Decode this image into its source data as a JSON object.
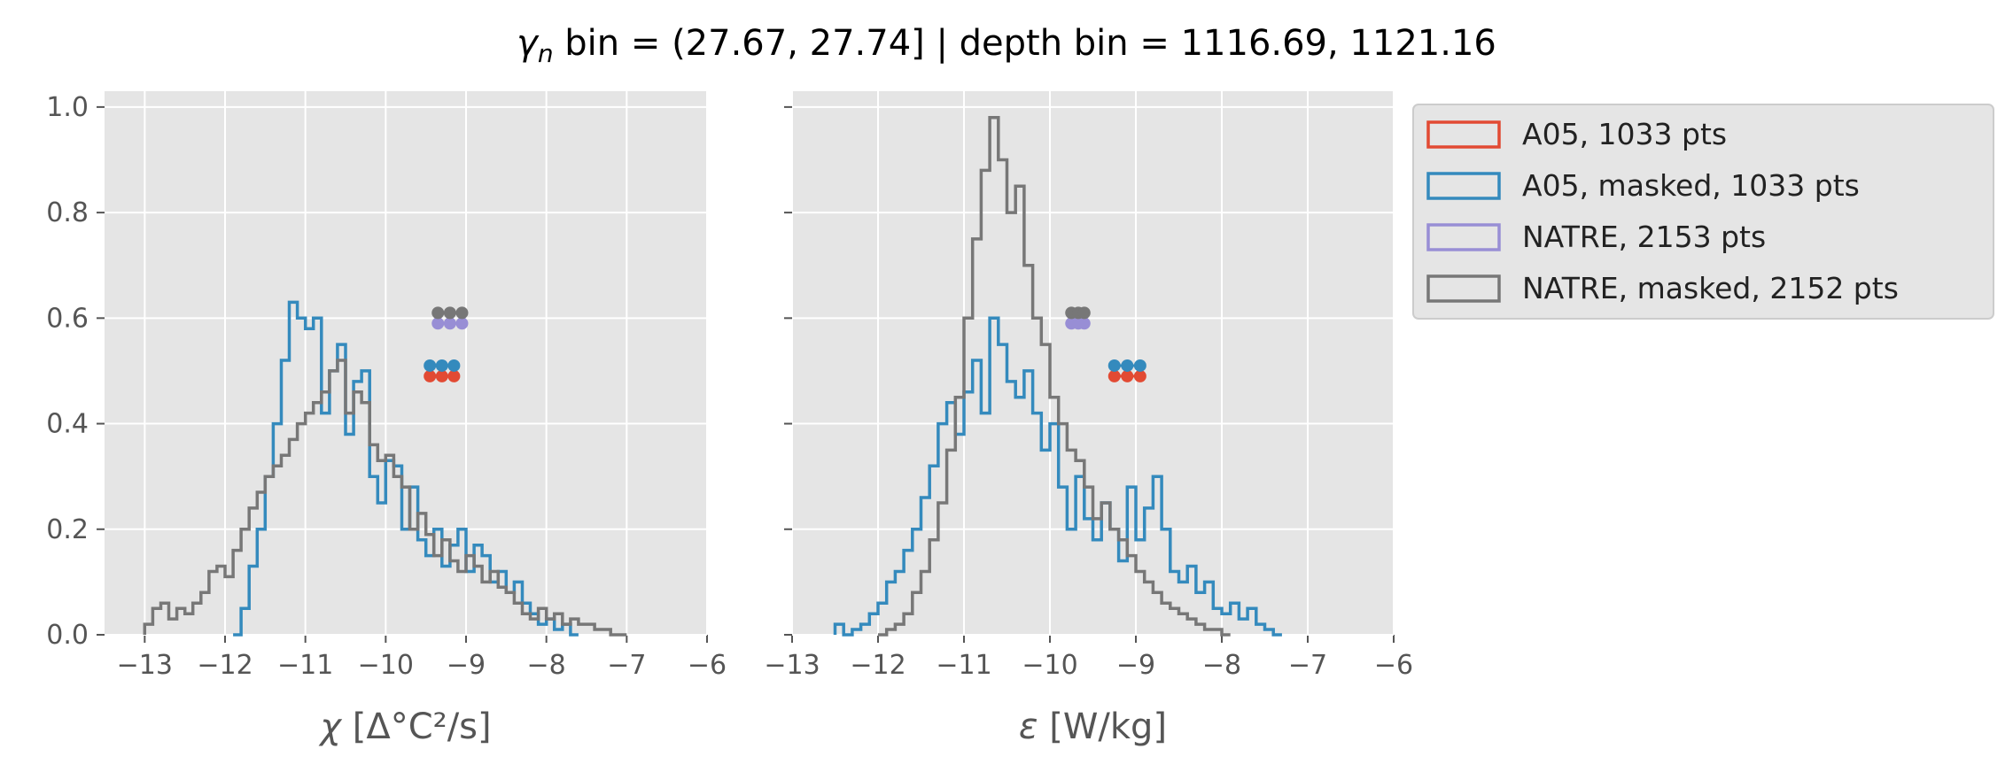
{
  "figure": {
    "title_symbol": "γ",
    "title_subscript": "n",
    "title_rest": " bin = (27.67, 27.74] | depth bin = 1116.69, 1121.16"
  },
  "legend": {
    "placement": "outside right of second panel, top",
    "entries": [
      {
        "label": "A05, 1033 pts",
        "color": "#E24A33"
      },
      {
        "label": "A05, masked,  1033 pts",
        "color": "#348ABD"
      },
      {
        "label": "NATRE, 2153 pts",
        "color": "#988ED5"
      },
      {
        "label": "NATRE, masked,  2152 pts",
        "color": "#777777"
      }
    ]
  },
  "style": {
    "panel_bg": "#E5E5E5",
    "grid": "#FFFFFF",
    "tick_color": "#555555"
  },
  "chart_data": [
    {
      "type": "histogram",
      "xlabel_symbol": "χ",
      "xlabel_rest": " [Δ°C²/s]",
      "xlim": [
        -13.5,
        -6
      ],
      "ylim": [
        0,
        1.03
      ],
      "xticks": [
        -13,
        -12,
        -11,
        -10,
        -9,
        -8,
        -7,
        -6
      ],
      "xtick_labels": [
        "−13",
        "−12",
        "−11",
        "−10",
        "−9",
        "−8",
        "−7",
        "−6"
      ],
      "yticks": [
        0,
        0.2,
        0.4,
        0.6,
        0.8,
        1.0
      ],
      "ytick_labels": [
        "0.0",
        "0.2",
        "0.4",
        "0.6",
        "0.8",
        "1.0"
      ],
      "grid": true,
      "series": [
        {
          "name": "A05, masked,  1033 pts",
          "color": "#348ABD",
          "draw": "step",
          "x": [
            -11.9,
            -11.8,
            -11.7,
            -11.6,
            -11.5,
            -11.4,
            -11.3,
            -11.2,
            -11.1,
            -11.0,
            -10.9,
            -10.8,
            -10.7,
            -10.6,
            -10.5,
            -10.4,
            -10.3,
            -10.2,
            -10.1,
            -10.0,
            -9.9,
            -9.8,
            -9.7,
            -9.6,
            -9.5,
            -9.4,
            -9.3,
            -9.2,
            -9.1,
            -9.0,
            -8.9,
            -8.8,
            -8.7,
            -8.6,
            -8.5,
            -8.4,
            -8.3,
            -8.2,
            -8.1,
            -8.0,
            -7.9,
            -7.8,
            -7.7
          ],
          "y": [
            0.0,
            0.05,
            0.13,
            0.2,
            0.3,
            0.4,
            0.52,
            0.63,
            0.6,
            0.58,
            0.6,
            0.42,
            0.5,
            0.55,
            0.38,
            0.48,
            0.5,
            0.3,
            0.25,
            0.33,
            0.32,
            0.2,
            0.28,
            0.18,
            0.15,
            0.2,
            0.13,
            0.17,
            0.2,
            0.12,
            0.17,
            0.15,
            0.1,
            0.12,
            0.08,
            0.1,
            0.06,
            0.04,
            0.02,
            0.03,
            0.01,
            0.02,
            0.0
          ]
        },
        {
          "name": "NATRE, masked,  2152 pts",
          "color": "#777777",
          "draw": "step",
          "x": [
            -13.0,
            -12.9,
            -12.8,
            -12.7,
            -12.6,
            -12.5,
            -12.4,
            -12.3,
            -12.2,
            -12.1,
            -12.0,
            -11.9,
            -11.8,
            -11.7,
            -11.6,
            -11.5,
            -11.4,
            -11.3,
            -11.2,
            -11.1,
            -11.0,
            -10.9,
            -10.8,
            -10.7,
            -10.6,
            -10.5,
            -10.4,
            -10.3,
            -10.2,
            -10.1,
            -10.0,
            -9.9,
            -9.8,
            -9.7,
            -9.6,
            -9.5,
            -9.4,
            -9.3,
            -9.2,
            -9.1,
            -9.0,
            -8.9,
            -8.8,
            -8.7,
            -8.6,
            -8.5,
            -8.4,
            -8.3,
            -8.2,
            -8.1,
            -8.0,
            -7.9,
            -7.8,
            -7.7,
            -7.6,
            -7.5,
            -7.4,
            -7.3,
            -7.2,
            -7.1
          ],
          "y": [
            0.02,
            0.05,
            0.06,
            0.03,
            0.05,
            0.04,
            0.06,
            0.08,
            0.12,
            0.13,
            0.11,
            0.16,
            0.2,
            0.24,
            0.27,
            0.3,
            0.32,
            0.34,
            0.37,
            0.4,
            0.42,
            0.44,
            0.46,
            0.5,
            0.52,
            0.42,
            0.46,
            0.44,
            0.36,
            0.33,
            0.34,
            0.3,
            0.28,
            0.2,
            0.23,
            0.19,
            0.15,
            0.18,
            0.14,
            0.12,
            0.15,
            0.13,
            0.1,
            0.12,
            0.09,
            0.08,
            0.06,
            0.04,
            0.03,
            0.05,
            0.03,
            0.04,
            0.02,
            0.03,
            0.02,
            0.02,
            0.01,
            0.01,
            0.0,
            0.0
          ]
        },
        {
          "name": "A05, 1033 pts",
          "color": "#E24A33",
          "draw": "markers",
          "x": [
            -9.45,
            -9.3,
            -9.15
          ],
          "y": [
            0.49,
            0.49,
            0.49
          ]
        },
        {
          "name": "A05, masked,  1033 pts",
          "color": "#348ABD",
          "draw": "markers",
          "x": [
            -9.45,
            -9.3,
            -9.15
          ],
          "y": [
            0.51,
            0.51,
            0.51
          ]
        },
        {
          "name": "NATRE, 2153 pts",
          "color": "#988ED5",
          "draw": "markers",
          "x": [
            -9.35,
            -9.2,
            -9.05
          ],
          "y": [
            0.59,
            0.59,
            0.59
          ]
        },
        {
          "name": "NATRE, masked,  2152 pts",
          "color": "#777777",
          "draw": "markers",
          "x": [
            -9.35,
            -9.2,
            -9.05
          ],
          "y": [
            0.61,
            0.61,
            0.61
          ]
        }
      ]
    },
    {
      "type": "histogram",
      "xlabel_symbol": "ε",
      "xlabel_rest": " [W/kg]",
      "xlim": [
        -13,
        -6
      ],
      "ylim": [
        0,
        1.03
      ],
      "xticks": [
        -13,
        -12,
        -11,
        -10,
        -9,
        -8,
        -7,
        -6
      ],
      "xtick_labels": [
        "−13",
        "−12",
        "−11",
        "−10",
        "−9",
        "−8",
        "−7",
        "−6"
      ],
      "yticks": [
        0,
        0.2,
        0.4,
        0.6,
        0.8,
        1.0
      ],
      "ytick_labels": [
        "",
        "",
        "",
        "",
        "",
        ""
      ],
      "grid": true,
      "series": [
        {
          "name": "A05, masked,  1033 pts",
          "color": "#348ABD",
          "draw": "step",
          "x": [
            -12.5,
            -12.4,
            -12.3,
            -12.2,
            -12.1,
            -12.0,
            -11.9,
            -11.8,
            -11.7,
            -11.6,
            -11.5,
            -11.4,
            -11.3,
            -11.2,
            -11.1,
            -11.0,
            -10.9,
            -10.8,
            -10.7,
            -10.6,
            -10.5,
            -10.4,
            -10.3,
            -10.2,
            -10.1,
            -10.0,
            -9.9,
            -9.8,
            -9.7,
            -9.6,
            -9.5,
            -9.4,
            -9.3,
            -9.2,
            -9.1,
            -9.0,
            -8.9,
            -8.8,
            -8.7,
            -8.6,
            -8.5,
            -8.4,
            -8.3,
            -8.2,
            -8.1,
            -8.0,
            -7.9,
            -7.8,
            -7.7,
            -7.6,
            -7.5,
            -7.4
          ],
          "y": [
            0.02,
            0.0,
            0.01,
            0.02,
            0.04,
            0.06,
            0.1,
            0.12,
            0.16,
            0.2,
            0.26,
            0.32,
            0.4,
            0.44,
            0.38,
            0.46,
            0.52,
            0.42,
            0.6,
            0.55,
            0.48,
            0.45,
            0.5,
            0.42,
            0.35,
            0.4,
            0.28,
            0.2,
            0.3,
            0.22,
            0.18,
            0.25,
            0.2,
            0.14,
            0.28,
            0.18,
            0.24,
            0.3,
            0.2,
            0.12,
            0.1,
            0.13,
            0.08,
            0.1,
            0.05,
            0.04,
            0.06,
            0.03,
            0.05,
            0.02,
            0.01,
            0.0
          ]
        },
        {
          "name": "NATRE, masked,  2152 pts",
          "color": "#777777",
          "draw": "step",
          "x": [
            -12.0,
            -11.9,
            -11.8,
            -11.7,
            -11.6,
            -11.5,
            -11.4,
            -11.3,
            -11.2,
            -11.1,
            -11.0,
            -10.9,
            -10.8,
            -10.7,
            -10.6,
            -10.5,
            -10.4,
            -10.3,
            -10.2,
            -10.1,
            -10.0,
            -9.9,
            -9.8,
            -9.7,
            -9.6,
            -9.5,
            -9.4,
            -9.3,
            -9.2,
            -9.1,
            -9.0,
            -8.9,
            -8.8,
            -8.7,
            -8.6,
            -8.5,
            -8.4,
            -8.3,
            -8.2,
            -8.1,
            -8.0
          ],
          "y": [
            0.0,
            0.01,
            0.02,
            0.04,
            0.08,
            0.12,
            0.18,
            0.25,
            0.35,
            0.45,
            0.6,
            0.75,
            0.88,
            0.98,
            0.9,
            0.8,
            0.85,
            0.7,
            0.6,
            0.55,
            0.45,
            0.4,
            0.35,
            0.33,
            0.28,
            0.22,
            0.25,
            0.2,
            0.18,
            0.15,
            0.12,
            0.1,
            0.08,
            0.06,
            0.05,
            0.04,
            0.03,
            0.02,
            0.01,
            0.01,
            0.0
          ]
        },
        {
          "name": "A05, 1033 pts",
          "color": "#E24A33",
          "draw": "markers",
          "x": [
            -9.25,
            -9.1,
            -8.95
          ],
          "y": [
            0.49,
            0.49,
            0.49
          ]
        },
        {
          "name": "A05, masked,  1033 pts",
          "color": "#348ABD",
          "draw": "markers",
          "x": [
            -9.25,
            -9.1,
            -8.95
          ],
          "y": [
            0.51,
            0.51,
            0.51
          ]
        },
        {
          "name": "NATRE, 2153 pts",
          "color": "#988ED5",
          "draw": "markers",
          "x": [
            -9.75,
            -9.67,
            -9.6
          ],
          "y": [
            0.59,
            0.59,
            0.59
          ]
        },
        {
          "name": "NATRE, masked,  2152 pts",
          "color": "#777777",
          "draw": "markers",
          "x": [
            -9.75,
            -9.67,
            -9.6
          ],
          "y": [
            0.61,
            0.61,
            0.61
          ]
        }
      ]
    }
  ]
}
